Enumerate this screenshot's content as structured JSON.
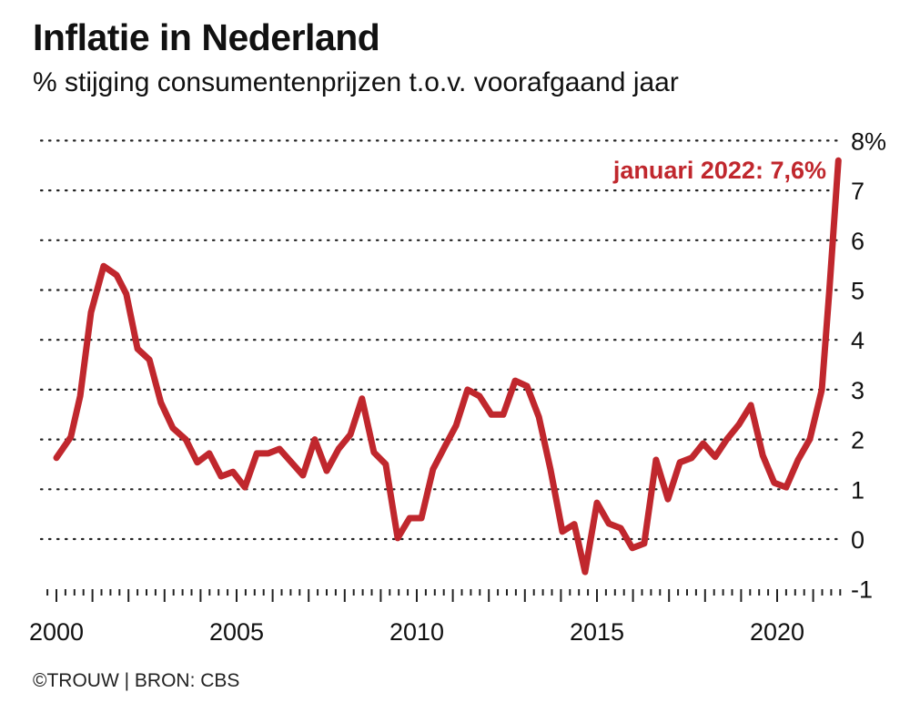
{
  "chart_data": {
    "type": "line",
    "title": "Inflatie in Nederland",
    "subtitle": "% stijging consumentenprijzen t.o.v. voorafgaand jaar",
    "source": "©TROUW | BRON: CBS",
    "xlabel": "",
    "ylabel": "",
    "ylim": [
      -1,
      8
    ],
    "xlim": [
      2000,
      2022
    ],
    "grid": true,
    "y_ticks": [
      "8%",
      "7",
      "6",
      "5",
      "4",
      "3",
      "2",
      "1",
      "0",
      "-1"
    ],
    "y_tick_values": [
      8,
      7,
      6,
      5,
      4,
      3,
      2,
      1,
      0,
      -1
    ],
    "x_ticks": [
      "2000",
      "2005",
      "2010",
      "2015",
      "2020"
    ],
    "x_tick_values": [
      2000,
      2005,
      2010,
      2015,
      2020
    ],
    "annotation": "januari 2022: 7,6%",
    "color": "#c0272d",
    "series": [
      {
        "name": "Inflatie",
        "x": [
          2000.0,
          2000.4,
          2000.66,
          2000.96,
          2001.31,
          2001.67,
          2001.94,
          2002.25,
          2002.58,
          2002.9,
          2003.23,
          2003.59,
          2003.91,
          2004.24,
          2004.57,
          2004.9,
          2005.23,
          2005.56,
          2005.88,
          2006.19,
          2006.84,
          2007.17,
          2007.5,
          2007.83,
          2008.16,
          2008.48,
          2008.81,
          2009.14,
          2009.47,
          2009.8,
          2010.13,
          2010.45,
          2010.78,
          2011.09,
          2011.41,
          2011.74,
          2012.07,
          2012.4,
          2012.73,
          2013.06,
          2013.39,
          2013.71,
          2014.04,
          2014.37,
          2014.67,
          2015.0,
          2015.33,
          2015.66,
          2015.98,
          2016.31,
          2016.64,
          2016.97,
          2017.3,
          2017.63,
          2017.95,
          2018.28,
          2018.61,
          2018.94,
          2019.27,
          2019.6,
          2019.92,
          2020.25,
          2020.58,
          2020.91,
          2021.24,
          2021.45,
          2021.7
        ],
        "values": [
          1.63,
          2.05,
          2.87,
          4.55,
          5.48,
          5.3,
          4.92,
          3.82,
          3.6,
          2.74,
          2.23,
          2.0,
          1.54,
          1.72,
          1.26,
          1.35,
          1.04,
          1.72,
          1.72,
          1.81,
          1.28,
          2.0,
          1.37,
          1.81,
          2.1,
          2.82,
          1.74,
          1.5,
          0.02,
          0.42,
          0.42,
          1.4,
          1.86,
          2.28,
          3.0,
          2.87,
          2.5,
          2.5,
          3.18,
          3.07,
          2.45,
          1.4,
          0.15,
          0.3,
          -0.66,
          0.73,
          0.31,
          0.22,
          -0.18,
          -0.09,
          1.59,
          0.8,
          1.54,
          1.63,
          1.92,
          1.65,
          2.01,
          2.3,
          2.69,
          1.68,
          1.13,
          1.04,
          1.59,
          2.01,
          3.0,
          5.0,
          7.6
        ]
      }
    ]
  }
}
